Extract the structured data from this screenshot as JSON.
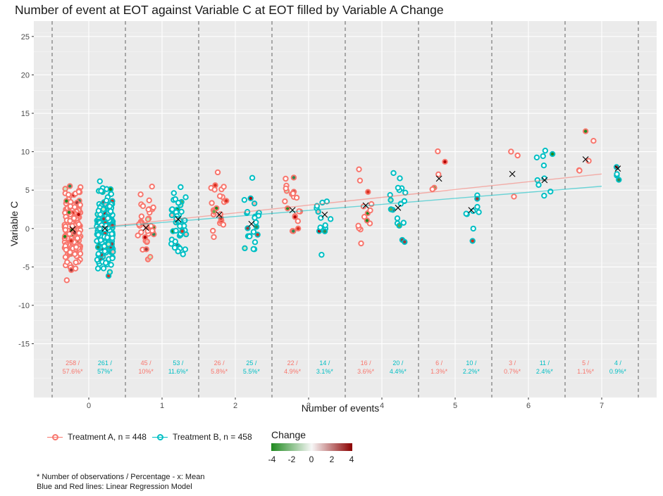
{
  "title": "Number of event at EOT against Variable C at EOT filled by Variable A Change",
  "xlabel": "Number of events",
  "ylabel": "Variable C",
  "legend": {
    "groups": [
      {
        "label": "Treatment A, n = 448",
        "color": "#F8766D"
      },
      {
        "label": "Treatment B, n = 458",
        "color": "#00BFC4"
      }
    ],
    "gradient_title": "Change",
    "gradient_ticks": [
      "-4",
      "-2",
      "0",
      "2",
      "4"
    ],
    "gradient_colors": {
      "low": "#1f8a1f",
      "mid": "#f7f7f7",
      "high": "#8b0000"
    }
  },
  "footnotes": [
    "* Number of observations / Percentage - x: Mean",
    "Blue and Red lines: Linear Regression Model"
  ],
  "chart_data": {
    "type": "scatter",
    "x_categories": [
      0,
      1,
      2,
      3,
      4,
      5,
      6,
      7
    ],
    "xlim": [
      -0.75,
      7.75
    ],
    "ylim": [
      -22,
      27
    ],
    "y_ticks": [
      -15,
      -10,
      -5,
      0,
      5,
      10,
      15,
      20,
      25
    ],
    "grid": true,
    "series": [
      {
        "name": "Treatment A",
        "color": "#F8766D",
        "means": [
          -0.1,
          0.1,
          1.8,
          2.4,
          3.0,
          6.5,
          7.1,
          9.0
        ],
        "counts": [
          "258 /",
          "45 /",
          "26 /",
          "22 /",
          "16 /",
          "6 /",
          "3 /",
          "5 /"
        ],
        "percentages": [
          "57.6%*",
          "10%*",
          "5.8%*",
          "4.9%*",
          "3.6%*",
          "1.3%*",
          "0.7%*",
          "1.1%*"
        ],
        "regression": [
          [
            0,
            0.0
          ],
          [
            7,
            7.1
          ]
        ]
      },
      {
        "name": "Treatment B",
        "color": "#00BFC4",
        "means": [
          0.0,
          1.2,
          0.6,
          1.8,
          2.7,
          2.4,
          6.3,
          7.8
        ],
        "counts": [
          "261 /",
          "53 /",
          "25 /",
          "14 /",
          "20 /",
          "10 /",
          "11 /",
          "4 /"
        ],
        "percentages": [
          "57%*",
          "11.6%*",
          "5.5%*",
          "3.1%*",
          "4.4%*",
          "2.2%*",
          "2.4%*",
          "0.9%*"
        ],
        "regression": [
          [
            0,
            0.0
          ],
          [
            7,
            5.5
          ]
        ]
      }
    ]
  }
}
